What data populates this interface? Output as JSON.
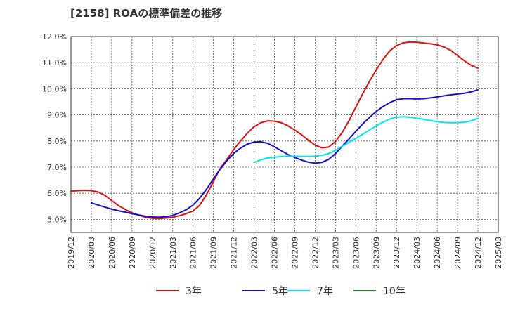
{
  "chart_data": {
    "type": "line",
    "title": "[2158]  ROAの標準偏差の推移",
    "xlabel": "",
    "ylabel": "",
    "ylim": [
      4.5,
      12.0
    ],
    "grid": true,
    "legend_position": "bottom",
    "y_ticks": [
      "12.0%",
      "11.0%",
      "10.0%",
      "9.0%",
      "8.0%",
      "7.0%",
      "6.0%",
      "5.0%"
    ],
    "y_tick_values": [
      12.0,
      11.0,
      10.0,
      9.0,
      8.0,
      7.0,
      6.0,
      5.0
    ],
    "x_ticks": [
      "2019/12",
      "2020/03",
      "2020/06",
      "2020/09",
      "2020/12",
      "2021/03",
      "2021/06",
      "2021/09",
      "2021/12",
      "2022/03",
      "2022/06",
      "2022/09",
      "2022/12",
      "2023/03",
      "2023/06",
      "2023/09",
      "2023/12",
      "2024/03",
      "2024/06",
      "2024/09",
      "2024/12",
      "2025/03"
    ],
    "series": [
      {
        "name": "3年",
        "color": "#dd1111",
        "points": [
          [
            "2019/12",
            6.08
          ],
          [
            "2020/01",
            6.1
          ],
          [
            "2020/02",
            6.11
          ],
          [
            "2020/03",
            6.1
          ],
          [
            "2020/04",
            6.05
          ],
          [
            "2020/05",
            5.92
          ],
          [
            "2020/06",
            5.72
          ],
          [
            "2020/07",
            5.53
          ],
          [
            "2020/08",
            5.38
          ],
          [
            "2020/09",
            5.25
          ],
          [
            "2020/10",
            5.16
          ],
          [
            "2020/11",
            5.08
          ],
          [
            "2020/12",
            5.04
          ],
          [
            "2021/01",
            5.03
          ],
          [
            "2021/02",
            5.05
          ],
          [
            "2021/03",
            5.08
          ],
          [
            "2021/04",
            5.14
          ],
          [
            "2021/05",
            5.22
          ],
          [
            "2021/06",
            5.32
          ],
          [
            "2021/07",
            5.55
          ],
          [
            "2021/08",
            5.95
          ],
          [
            "2021/09",
            6.45
          ],
          [
            "2021/10",
            6.95
          ],
          [
            "2021/11",
            7.3
          ],
          [
            "2021/12",
            7.68
          ],
          [
            "2022/01",
            8.0
          ],
          [
            "2022/02",
            8.3
          ],
          [
            "2022/03",
            8.55
          ],
          [
            "2022/04",
            8.7
          ],
          [
            "2022/05",
            8.77
          ],
          [
            "2022/06",
            8.76
          ],
          [
            "2022/07",
            8.7
          ],
          [
            "2022/08",
            8.58
          ],
          [
            "2022/09",
            8.42
          ],
          [
            "2022/10",
            8.24
          ],
          [
            "2022/11",
            8.03
          ],
          [
            "2022/12",
            7.84
          ],
          [
            "2023/01",
            7.74
          ],
          [
            "2023/02",
            7.77
          ],
          [
            "2023/03",
            7.98
          ],
          [
            "2023/04",
            8.33
          ],
          [
            "2023/05",
            8.78
          ],
          [
            "2023/06",
            9.3
          ],
          [
            "2023/07",
            9.8
          ],
          [
            "2023/08",
            10.28
          ],
          [
            "2023/09",
            10.72
          ],
          [
            "2023/10",
            11.12
          ],
          [
            "2023/11",
            11.45
          ],
          [
            "2023/12",
            11.65
          ],
          [
            "2024/01",
            11.76
          ],
          [
            "2024/02",
            11.79
          ],
          [
            "2024/03",
            11.78
          ],
          [
            "2024/04",
            11.75
          ],
          [
            "2024/05",
            11.72
          ],
          [
            "2024/06",
            11.68
          ],
          [
            "2024/07",
            11.6
          ],
          [
            "2024/08",
            11.47
          ],
          [
            "2024/09",
            11.27
          ],
          [
            "2024/10",
            11.07
          ],
          [
            "2024/11",
            10.9
          ],
          [
            "2024/12",
            10.79
          ]
        ]
      },
      {
        "name": "5年",
        "color": "#1111cc",
        "points": [
          [
            "2020/03",
            5.63
          ],
          [
            "2020/04",
            5.55
          ],
          [
            "2020/05",
            5.47
          ],
          [
            "2020/06",
            5.39
          ],
          [
            "2020/07",
            5.33
          ],
          [
            "2020/08",
            5.28
          ],
          [
            "2020/09",
            5.22
          ],
          [
            "2020/10",
            5.17
          ],
          [
            "2020/11",
            5.12
          ],
          [
            "2020/12",
            5.09
          ],
          [
            "2021/01",
            5.08
          ],
          [
            "2021/02",
            5.1
          ],
          [
            "2021/03",
            5.15
          ],
          [
            "2021/04",
            5.25
          ],
          [
            "2021/05",
            5.37
          ],
          [
            "2021/06",
            5.55
          ],
          [
            "2021/07",
            5.82
          ],
          [
            "2021/08",
            6.16
          ],
          [
            "2021/09",
            6.55
          ],
          [
            "2021/10",
            6.92
          ],
          [
            "2021/11",
            7.25
          ],
          [
            "2021/12",
            7.53
          ],
          [
            "2022/01",
            7.73
          ],
          [
            "2022/02",
            7.88
          ],
          [
            "2022/03",
            7.96
          ],
          [
            "2022/04",
            7.97
          ],
          [
            "2022/05",
            7.91
          ],
          [
            "2022/06",
            7.78
          ],
          [
            "2022/07",
            7.63
          ],
          [
            "2022/08",
            7.48
          ],
          [
            "2022/09",
            7.37
          ],
          [
            "2022/10",
            7.27
          ],
          [
            "2022/11",
            7.19
          ],
          [
            "2022/12",
            7.15
          ],
          [
            "2023/01",
            7.18
          ],
          [
            "2023/02",
            7.3
          ],
          [
            "2023/03",
            7.52
          ],
          [
            "2023/04",
            7.8
          ],
          [
            "2023/05",
            8.08
          ],
          [
            "2023/06",
            8.37
          ],
          [
            "2023/07",
            8.65
          ],
          [
            "2023/08",
            8.9
          ],
          [
            "2023/09",
            9.13
          ],
          [
            "2023/10",
            9.32
          ],
          [
            "2023/11",
            9.47
          ],
          [
            "2023/12",
            9.58
          ],
          [
            "2024/01",
            9.62
          ],
          [
            "2024/02",
            9.62
          ],
          [
            "2024/03",
            9.61
          ],
          [
            "2024/04",
            9.62
          ],
          [
            "2024/05",
            9.65
          ],
          [
            "2024/06",
            9.69
          ],
          [
            "2024/07",
            9.73
          ],
          [
            "2024/08",
            9.77
          ],
          [
            "2024/09",
            9.8
          ],
          [
            "2024/10",
            9.83
          ],
          [
            "2024/11",
            9.88
          ],
          [
            "2024/12",
            9.96
          ]
        ]
      },
      {
        "name": "7年",
        "color": "#00e5ee",
        "points": [
          [
            "2022/03",
            7.18
          ],
          [
            "2022/04",
            7.28
          ],
          [
            "2022/05",
            7.35
          ],
          [
            "2022/06",
            7.38
          ],
          [
            "2022/07",
            7.41
          ],
          [
            "2022/08",
            7.42
          ],
          [
            "2022/09",
            7.42
          ],
          [
            "2022/10",
            7.41
          ],
          [
            "2022/11",
            7.41
          ],
          [
            "2022/12",
            7.42
          ],
          [
            "2023/01",
            7.45
          ],
          [
            "2023/02",
            7.52
          ],
          [
            "2023/03",
            7.64
          ],
          [
            "2023/04",
            7.8
          ],
          [
            "2023/05",
            7.95
          ],
          [
            "2023/06",
            8.1
          ],
          [
            "2023/07",
            8.26
          ],
          [
            "2023/08",
            8.42
          ],
          [
            "2023/09",
            8.58
          ],
          [
            "2023/10",
            8.72
          ],
          [
            "2023/11",
            8.84
          ],
          [
            "2023/12",
            8.91
          ],
          [
            "2024/01",
            8.93
          ],
          [
            "2024/02",
            8.91
          ],
          [
            "2024/03",
            8.87
          ],
          [
            "2024/04",
            8.83
          ],
          [
            "2024/05",
            8.78
          ],
          [
            "2024/06",
            8.74
          ],
          [
            "2024/07",
            8.71
          ],
          [
            "2024/08",
            8.7
          ],
          [
            "2024/09",
            8.7
          ],
          [
            "2024/10",
            8.72
          ],
          [
            "2024/11",
            8.77
          ],
          [
            "2024/12",
            8.87
          ]
        ]
      },
      {
        "name": "10年",
        "color": "#228b22",
        "points": []
      }
    ]
  }
}
